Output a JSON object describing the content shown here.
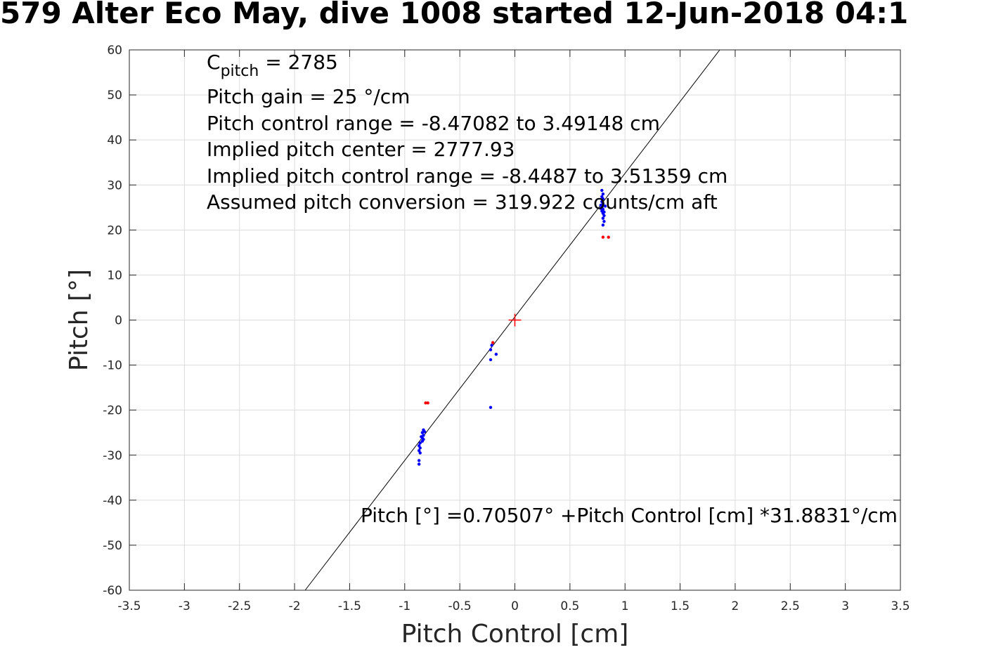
{
  "chart_data": {
    "type": "scatter",
    "title": "579 Alter Eco May, dive 1008 started 12-Jun-2018 04:1",
    "xlabel": "Pitch Control [cm]",
    "ylabel": "Pitch [°]",
    "xlim": [
      -3.5,
      3.5
    ],
    "ylim": [
      -60,
      60
    ],
    "xticks": [
      -3.5,
      -3,
      -2.5,
      -2,
      -1.5,
      -1,
      -0.5,
      0,
      0.5,
      1,
      1.5,
      2,
      2.5,
      3,
      3.5
    ],
    "xtick_labels": [
      "-3.5",
      "-3",
      "-2.5",
      "-2",
      "-1.5",
      "-1",
      "-0.5",
      "0",
      "0.5",
      "1",
      "1.5",
      "2",
      "2.5",
      "3",
      "3.5"
    ],
    "yticks": [
      -60,
      -50,
      -40,
      -30,
      -20,
      -10,
      0,
      10,
      20,
      30,
      40,
      50,
      60
    ],
    "ytick_labels": [
      "-60",
      "-50",
      "-40",
      "-30",
      "-20",
      "-10",
      "0",
      "10",
      "20",
      "30",
      "40",
      "50",
      "60"
    ],
    "grid": true,
    "fit_line": {
      "intercept": 0.70507,
      "slope": 31.8831,
      "color": "#000000"
    },
    "center_marker": {
      "x": 0,
      "y": 0,
      "color": "#ff0000"
    },
    "annotations": {
      "c_pitch_symbol": "C",
      "c_pitch_subscript": "pitch",
      "c_pitch_value": " = 2785",
      "pitch_gain": "Pitch gain = 25 °/cm",
      "pitch_control_range": "Pitch control range = -8.47082 to 3.49148 cm",
      "implied_pitch_center": "Implied pitch center = 2777.93",
      "implied_pitch_control_range": "Implied pitch control range = -8.4487 to 3.51359 cm",
      "assumed_pitch_conversion": "Assumed pitch conversion = 319.922 counts/cm aft",
      "fit_equation": "Pitch [°] =0.70507° +Pitch Control [cm] *31.8831°/cm"
    },
    "series": [
      {
        "color": "#0000ff",
        "points": [
          [
            0.79,
            28.8
          ],
          [
            0.8,
            28.0
          ],
          [
            0.79,
            27.4
          ],
          [
            0.8,
            26.9
          ],
          [
            0.79,
            26.3
          ],
          [
            0.8,
            25.8
          ],
          [
            0.78,
            25.5
          ],
          [
            0.79,
            25.0
          ],
          [
            0.8,
            24.6
          ],
          [
            0.79,
            24.2
          ],
          [
            0.8,
            23.7
          ],
          [
            0.81,
            23.2
          ],
          [
            0.8,
            22.6
          ],
          [
            0.81,
            21.9
          ],
          [
            0.8,
            21.1
          ],
          [
            0.82,
            25.3
          ],
          [
            0.81,
            24.0
          ],
          [
            0.78,
            24.8
          ],
          [
            -0.21,
            -5.6
          ],
          [
            -0.22,
            -6.6
          ],
          [
            -0.22,
            -8.8
          ],
          [
            -0.17,
            -7.6
          ],
          [
            -0.22,
            -19.4
          ],
          [
            -0.83,
            -24.4
          ],
          [
            -0.84,
            -25.0
          ],
          [
            -0.83,
            -25.6
          ],
          [
            -0.85,
            -25.9
          ],
          [
            -0.84,
            -26.2
          ],
          [
            -0.83,
            -26.5
          ],
          [
            -0.84,
            -26.9
          ],
          [
            -0.86,
            -27.3
          ],
          [
            -0.87,
            -27.9
          ],
          [
            -0.86,
            -28.4
          ],
          [
            -0.87,
            -29.0
          ],
          [
            -0.86,
            -29.5
          ],
          [
            -0.87,
            -31.2
          ],
          [
            -0.87,
            -32.0
          ],
          [
            -0.82,
            -24.8
          ]
        ]
      },
      {
        "color": "#ff0000",
        "points": [
          [
            0.8,
            18.4
          ],
          [
            0.85,
            18.4
          ],
          [
            -0.2,
            -5.0
          ],
          [
            -0.81,
            -18.4
          ],
          [
            -0.79,
            -18.4
          ]
        ]
      }
    ]
  }
}
